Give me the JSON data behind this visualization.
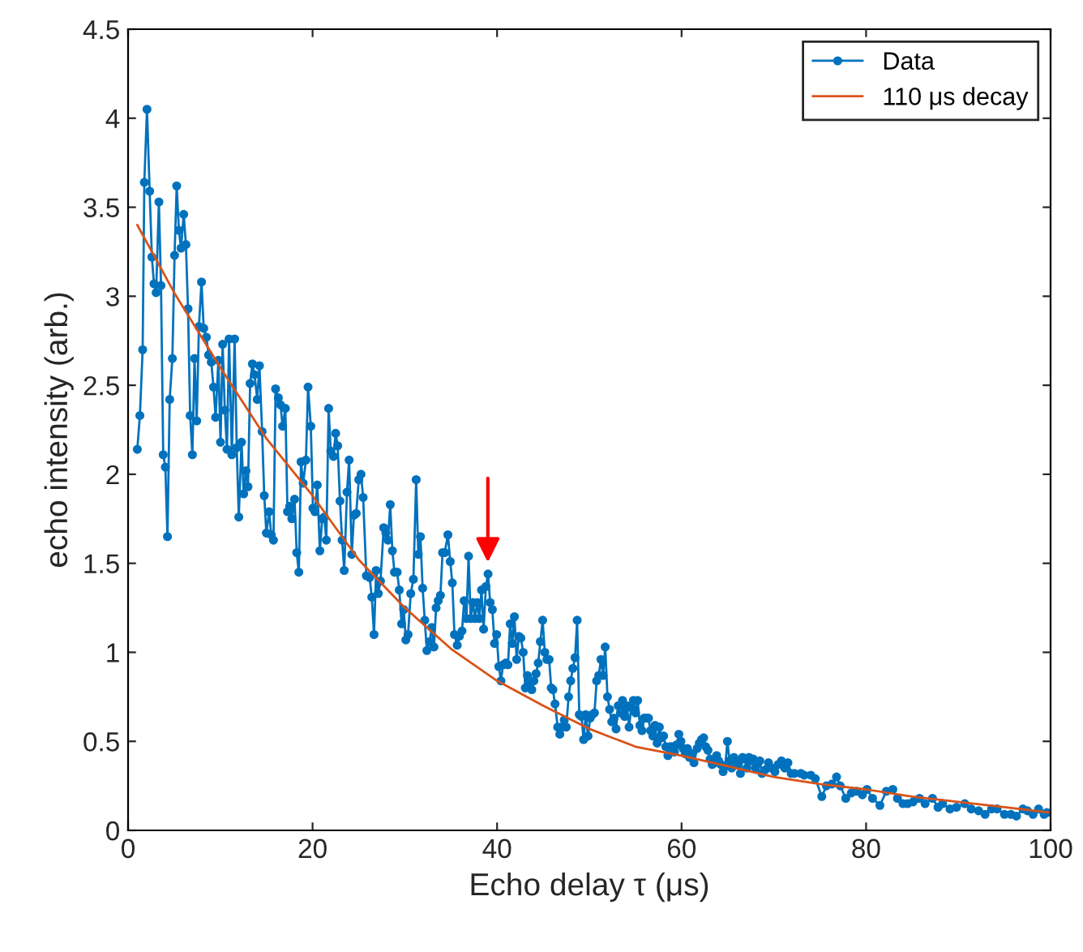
{
  "chart_data": {
    "type": "line",
    "xlabel": "Echo delay τ (μs)",
    "ylabel": "echo intensity (arb.)",
    "xlim": [
      0,
      100
    ],
    "xticks": [
      0,
      20,
      40,
      60,
      80,
      100
    ],
    "ylim": [
      0,
      4.5
    ],
    "yticks": [
      0,
      0.5,
      1,
      1.5,
      2,
      2.5,
      3,
      3.5,
      4,
      4.5
    ],
    "grid": false,
    "legend": "top right",
    "series": [
      {
        "name": "Data",
        "color": "#0072bd",
        "marker": "circle",
        "x": [
          1.0,
          1.28,
          1.58,
          1.76,
          2.05,
          2.34,
          2.58,
          2.81,
          3.04,
          3.34,
          3.57,
          3.81,
          4.04,
          4.27,
          4.51,
          4.8,
          5.04,
          5.27,
          5.51,
          5.74,
          6.03,
          6.27,
          6.5,
          6.73,
          6.97,
          7.2,
          7.44,
          7.68,
          7.96,
          8.2,
          8.49,
          8.73,
          9.02,
          9.26,
          9.49,
          9.79,
          10.02,
          10.25,
          10.49,
          10.72,
          10.95,
          11.25,
          11.55,
          11.78,
          12.0,
          12.3,
          12.53,
          12.78,
          13.0,
          13.23,
          13.48,
          13.71,
          14.0,
          14.24,
          14.53,
          14.76,
          14.99,
          15.29,
          15.52,
          15.76,
          15.99,
          16.29,
          16.52,
          16.75,
          17.05,
          17.28,
          17.52,
          17.75,
          18.05,
          18.28,
          18.51,
          18.75,
          18.98,
          19.28,
          19.51,
          19.81,
          20.04,
          20.26,
          20.51,
          20.79,
          21.04,
          21.27,
          21.49,
          21.74,
          21.97,
          22.27,
          22.5,
          22.72,
          22.97,
          23.2,
          23.43,
          23.73,
          23.96,
          24.25,
          24.48,
          24.73,
          25.01,
          25.25,
          25.48,
          25.83,
          26.19,
          26.42,
          26.66,
          26.89,
          27.12,
          27.36,
          27.71,
          27.94,
          28.17,
          28.42,
          28.65,
          28.88,
          29.17,
          29.4,
          29.65,
          29.88,
          30.11,
          30.35,
          30.64,
          30.93,
          31.23,
          31.46,
          31.69,
          31.93,
          32.16,
          32.39,
          32.69,
          32.92,
          33.16,
          33.39,
          33.62,
          33.86,
          34.09,
          34.32,
          34.67,
          34.92,
          35.15,
          35.38,
          35.68,
          35.91,
          36.2,
          36.43,
          36.68,
          36.91,
          37.14,
          37.38,
          37.61,
          37.84,
          38.08,
          38.31,
          38.54,
          38.79,
          39.02,
          39.25,
          39.49,
          39.72,
          39.95,
          40.19,
          40.42,
          40.65,
          40.95,
          41.18,
          41.42,
          41.65,
          41.88,
          42.12,
          42.36,
          42.58,
          42.83,
          43.06,
          43.29,
          43.53,
          43.76,
          43.99,
          44.23,
          44.46,
          44.69,
          44.94,
          45.17,
          45.4,
          45.64,
          45.87,
          46.05,
          46.28,
          46.57,
          46.8,
          47.05,
          47.28,
          47.5,
          47.75,
          47.98,
          48.21,
          48.45,
          48.68,
          48.91,
          49.15,
          49.38,
          49.61,
          49.86,
          50.09,
          50.32,
          50.56,
          50.79,
          51.02,
          51.26,
          51.49,
          51.72,
          51.97,
          52.2,
          52.43,
          52.67,
          52.9,
          53.13,
          53.37,
          53.6,
          53.83,
          54.08,
          54.31,
          54.54,
          54.78,
          55.01,
          55.24,
          55.48,
          55.71,
          55.94,
          56.18,
          56.41,
          56.64,
          56.89,
          57.12,
          57.35,
          57.59,
          57.82,
          58.05,
          58.29,
          58.52,
          58.75,
          58.99,
          59.22,
          59.45,
          59.7,
          59.93,
          60.16,
          60.4,
          60.63,
          60.86,
          61.1,
          61.34,
          61.69,
          61.92,
          62.16,
          62.39,
          62.62,
          62.86,
          63.09,
          63.32,
          63.57,
          63.8,
          64.03,
          64.27,
          64.5,
          64.73,
          64.97,
          65.2,
          65.43,
          65.67,
          65.9,
          66.13,
          66.38,
          66.61,
          66.84,
          67.08,
          67.31,
          67.54,
          67.78,
          68.01,
          68.24,
          68.48,
          68.72,
          69.07,
          69.42,
          69.77,
          70.12,
          70.47,
          70.83,
          71.18,
          71.53,
          71.88,
          72.23,
          72.93,
          73.29,
          74.0,
          74.5,
          75.2,
          75.7,
          76.3,
          76.8,
          77.2,
          77.8,
          78.4,
          79.0,
          79.6,
          80.1,
          80.7,
          81.5,
          82.2,
          82.9,
          83.4,
          84.0,
          84.5,
          85.1,
          85.8,
          86.4,
          87.2,
          87.8,
          88.3,
          89.1,
          89.8,
          90.7,
          91.4,
          92.2,
          92.9,
          93.6,
          94.2,
          95.0,
          95.7,
          96.3,
          97.0,
          97.5,
          98.1,
          98.7,
          99.3,
          99.6
        ],
        "values": [
          2.14,
          2.33,
          2.7,
          3.64,
          4.05,
          3.59,
          3.22,
          3.07,
          3.02,
          3.53,
          3.06,
          2.11,
          2.04,
          1.65,
          2.42,
          2.65,
          3.23,
          3.62,
          3.37,
          3.27,
          3.46,
          3.29,
          2.93,
          2.33,
          2.11,
          2.65,
          2.3,
          2.83,
          3.08,
          2.82,
          2.77,
          2.67,
          2.63,
          2.49,
          2.32,
          2.64,
          2.18,
          2.73,
          2.36,
          2.14,
          2.76,
          2.11,
          2.76,
          2.15,
          1.76,
          2.18,
          1.89,
          2.02,
          1.93,
          2.51,
          2.62,
          2.56,
          2.42,
          2.61,
          2.24,
          1.88,
          1.67,
          1.79,
          1.66,
          1.63,
          2.48,
          2.43,
          2.39,
          2.27,
          2.37,
          1.79,
          1.82,
          1.75,
          1.86,
          1.56,
          1.45,
          2.07,
          1.95,
          2.08,
          2.49,
          2.27,
          1.81,
          1.79,
          1.94,
          1.57,
          1.75,
          1.76,
          1.63,
          2.37,
          2.13,
          2.1,
          2.23,
          2.16,
          1.85,
          1.63,
          1.46,
          1.9,
          2.08,
          1.55,
          1.77,
          1.78,
          1.97,
          2.0,
          1.87,
          1.43,
          1.42,
          1.31,
          1.1,
          1.46,
          1.33,
          1.4,
          1.7,
          1.67,
          1.63,
          1.83,
          1.57,
          1.45,
          1.45,
          1.35,
          1.16,
          1.24,
          1.07,
          1.1,
          1.33,
          1.41,
          1.97,
          1.55,
          1.65,
          1.36,
          1.18,
          1.01,
          1.06,
          1.14,
          1.03,
          1.25,
          1.29,
          1.32,
          1.56,
          1.56,
          1.66,
          1.51,
          1.39,
          1.1,
          1.04,
          1.09,
          1.12,
          1.29,
          1.19,
          1.54,
          1.19,
          1.28,
          1.19,
          1.28,
          1.19,
          1.35,
          1.13,
          1.37,
          1.44,
          1.28,
          1.24,
          1.05,
          1.1,
          0.92,
          0.84,
          0.93,
          0.94,
          0.93,
          1.16,
          1.05,
          1.2,
          0.96,
          1.09,
          1.08,
          1.0,
          0.8,
          0.87,
          0.82,
          0.79,
          0.84,
          0.88,
          0.94,
          1.06,
          1.18,
          1.0,
          0.96,
          0.96,
          0.8,
          0.79,
          0.71,
          0.58,
          0.54,
          0.58,
          0.62,
          0.58,
          0.75,
          0.84,
          0.91,
          0.97,
          1.18,
          0.65,
          0.64,
          0.51,
          0.65,
          0.53,
          0.63,
          0.65,
          0.66,
          0.84,
          0.87,
          0.96,
          0.87,
          1.03,
          0.75,
          0.68,
          0.61,
          0.63,
          0.57,
          0.7,
          0.66,
          0.73,
          0.64,
          0.7,
          0.58,
          0.69,
          0.73,
          0.66,
          0.73,
          0.59,
          0.56,
          0.63,
          0.63,
          0.63,
          0.56,
          0.53,
          0.59,
          0.49,
          0.58,
          0.52,
          0.53,
          0.47,
          0.42,
          0.47,
          0.47,
          0.44,
          0.48,
          0.54,
          0.5,
          0.46,
          0.43,
          0.46,
          0.41,
          0.43,
          0.38,
          0.46,
          0.49,
          0.51,
          0.52,
          0.47,
          0.45,
          0.4,
          0.37,
          0.38,
          0.42,
          0.39,
          0.37,
          0.33,
          0.36,
          0.5,
          0.39,
          0.35,
          0.41,
          0.39,
          0.37,
          0.32,
          0.41,
          0.4,
          0.35,
          0.41,
          0.39,
          0.4,
          0.35,
          0.38,
          0.39,
          0.32,
          0.34,
          0.38,
          0.35,
          0.33,
          0.37,
          0.39,
          0.35,
          0.38,
          0.32,
          0.32,
          0.32,
          0.31,
          0.31,
          0.29,
          0.19,
          0.25,
          0.26,
          0.3,
          0.25,
          0.18,
          0.21,
          0.22,
          0.2,
          0.23,
          0.18,
          0.14,
          0.22,
          0.23,
          0.18,
          0.15,
          0.15,
          0.16,
          0.18,
          0.15,
          0.18,
          0.13,
          0.15,
          0.12,
          0.13,
          0.15,
          0.12,
          0.11,
          0.09,
          0.12,
          0.12,
          0.09,
          0.09,
          0.08,
          0.12,
          0.11,
          0.09,
          0.12,
          0.09,
          0.1
        ]
      },
      {
        "name": "110 μs decay",
        "color": "#d95319",
        "marker": "none",
        "x": [
          1,
          5,
          10,
          15,
          20,
          25,
          30,
          35,
          40,
          45,
          50,
          55,
          60,
          65,
          70,
          75,
          80,
          85,
          90,
          95,
          100
        ],
        "values": [
          3.4,
          3.02,
          2.6,
          2.2,
          1.88,
          1.52,
          1.25,
          1.02,
          0.84,
          0.7,
          0.57,
          0.47,
          0.42,
          0.36,
          0.3,
          0.26,
          0.23,
          0.19,
          0.16,
          0.13,
          0.1
        ]
      }
    ]
  }
}
